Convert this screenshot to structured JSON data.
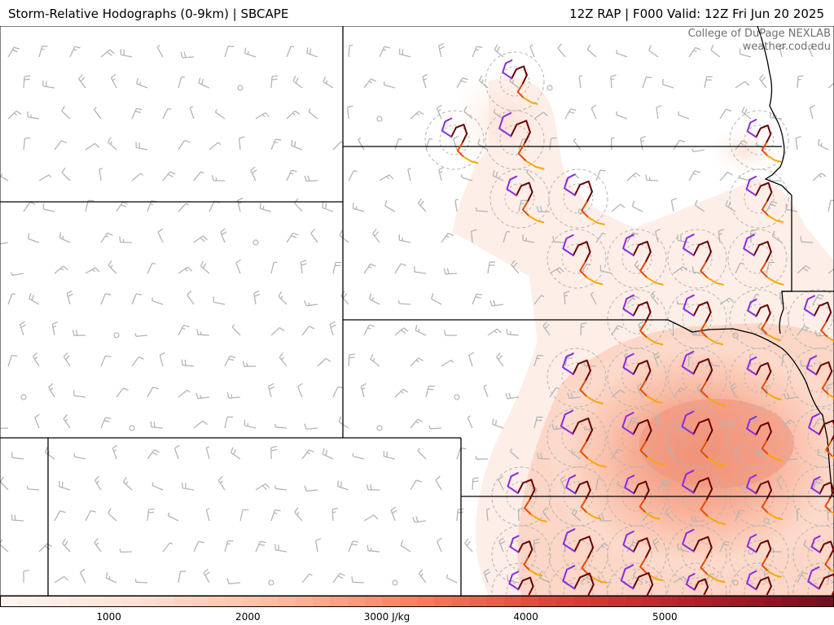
{
  "header": {
    "title": "Storm-Relative Hodographs (0-9km) | SBCAPE",
    "valid": "12Z RAP | F000 Valid: 12Z Fri Jun 20 2025"
  },
  "credit": {
    "line1": "College of DuPage NEXLAB",
    "line2": "weather.cod.edu"
  },
  "colors": {
    "boundary": "#000000",
    "barb": "#b4b4b4",
    "hodo_low": "#6a0000",
    "hodo_mid": "#e64b00",
    "hodo_upper": "#ffa500",
    "hodo_top": "#8a2be2",
    "range_ring": "#b4b4b4"
  },
  "cape_field": {
    "units": "J/kg",
    "colorbar_min": 0,
    "colorbar_max": 6000,
    "colorbar_ticks": [
      {
        "value": 1000,
        "label": "1000"
      },
      {
        "value": 2000,
        "label": "2000"
      },
      {
        "value": 3000,
        "label": "3000 J/kg"
      },
      {
        "value": 4000,
        "label": "4000"
      },
      {
        "value": 5000,
        "label": "5000"
      }
    ],
    "colorbar_stops": [
      {
        "value": 0,
        "color": "#fff5f0"
      },
      {
        "value": 1000,
        "color": "#fee0d2"
      },
      {
        "value": 2000,
        "color": "#fcbba1"
      },
      {
        "value": 3000,
        "color": "#f58060"
      },
      {
        "value": 4000,
        "color": "#e0403a"
      },
      {
        "value": 5000,
        "color": "#b51d2a"
      },
      {
        "value": 6000,
        "color": "#6e1020"
      }
    ]
  },
  "icons": {
    "barb": "wind-barb-icon",
    "calm": "calm-wind-circle-icon",
    "hodograph": "hodograph-icon"
  }
}
